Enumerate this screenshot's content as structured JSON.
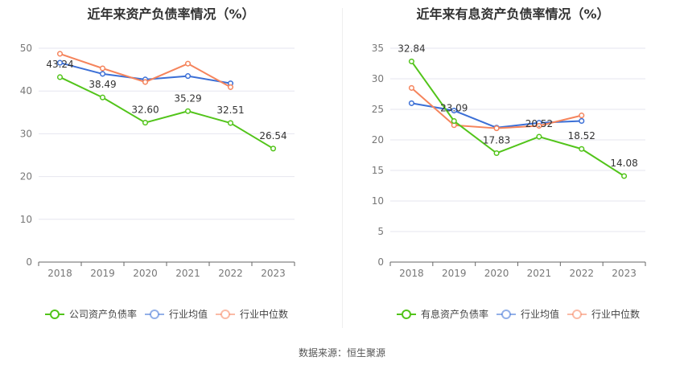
{
  "source_note": "数据来源：恒生聚源",
  "chart_data": [
    {
      "type": "line",
      "title": "近年来资产负债率情况（%）",
      "x": [
        "2018",
        "2019",
        "2020",
        "2021",
        "2022",
        "2023"
      ],
      "ylim": [
        0,
        50
      ],
      "yticks": [
        0,
        10,
        20,
        30,
        40,
        50
      ],
      "grid": true,
      "legend_position": "bottom",
      "series": [
        {
          "name": "公司资产负债率",
          "color": "#52c41a",
          "values": [
            43.24,
            38.49,
            32.6,
            35.29,
            32.51,
            26.54
          ],
          "labels": [
            "43.24",
            "38.49",
            "32.60",
            "35.29",
            "32.51",
            "26.54"
          ]
        },
        {
          "name": "行业均值",
          "color": "#3b6fd6",
          "values": [
            46.6,
            44.0,
            42.7,
            43.5,
            41.8,
            null
          ]
        },
        {
          "name": "行业中位数",
          "color": "#f5845c",
          "values": [
            48.7,
            45.3,
            42.1,
            46.4,
            40.9,
            null
          ]
        }
      ]
    },
    {
      "type": "line",
      "title": "近年来有息资产负债率情况（%）",
      "x": [
        "2018",
        "2019",
        "2020",
        "2021",
        "2022",
        "2023"
      ],
      "ylim": [
        0,
        35
      ],
      "yticks": [
        0,
        5,
        10,
        15,
        20,
        25,
        30,
        35
      ],
      "grid": true,
      "legend_position": "bottom",
      "series": [
        {
          "name": "有息资产负债率",
          "color": "#52c41a",
          "values": [
            32.84,
            23.09,
            17.83,
            20.52,
            18.52,
            14.08
          ],
          "labels": [
            "32.84",
            "23.09",
            "17.83",
            "20.52",
            "18.52",
            "14.08"
          ]
        },
        {
          "name": "行业均值",
          "color": "#3b6fd6",
          "values": [
            26.0,
            24.8,
            22.0,
            22.8,
            23.1,
            null
          ]
        },
        {
          "name": "行业中位数",
          "color": "#f5845c",
          "values": [
            28.5,
            22.4,
            21.9,
            22.3,
            24.0,
            null
          ]
        }
      ]
    }
  ]
}
